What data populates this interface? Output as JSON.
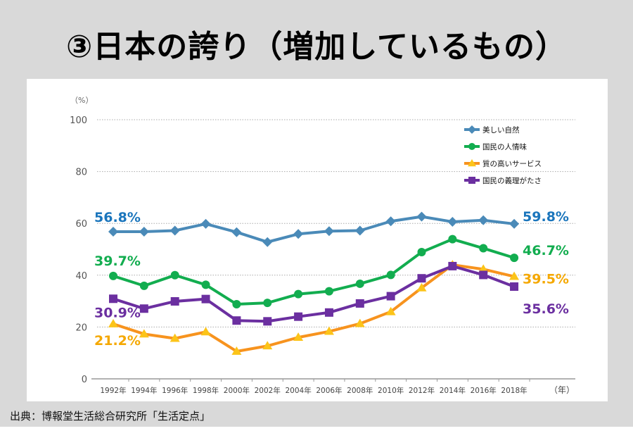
{
  "title": "③日本の誇り（増加しているもの）",
  "source": "出典：博報堂生活総合研究所「生活定点」",
  "chart_data": {
    "type": "line",
    "title": "③日本の誇り（増加しているもの）",
    "xlabel": "（年）",
    "ylabel": "（%）",
    "ylim": [
      0,
      100
    ],
    "yticks": [
      0,
      20,
      40,
      60,
      80,
      100
    ],
    "grid": true,
    "legend_position": "top-right",
    "categories": [
      "1992年",
      "1994年",
      "1996年",
      "1998年",
      "2000年",
      "2002年",
      "2004年",
      "2006年",
      "2008年",
      "2010年",
      "2012年",
      "2014年",
      "2016年",
      "2018年"
    ],
    "series": [
      {
        "name": "美しい自然",
        "color": "#4a8ab8",
        "marker": "diamond",
        "values": [
          56.8,
          56.8,
          57.2,
          59.8,
          56.6,
          52.8,
          55.9,
          57.0,
          57.2,
          60.8,
          62.6,
          60.6,
          61.2,
          59.8
        ],
        "start_label": "56.8%",
        "end_label": "59.8%",
        "label_color": "#1a75bc"
      },
      {
        "name": "国民の人情味",
        "color": "#12ad4f",
        "marker": "circle",
        "values": [
          39.7,
          35.9,
          40.0,
          36.3,
          28.8,
          29.3,
          32.7,
          33.8,
          36.7,
          40.1,
          48.9,
          53.9,
          50.4,
          46.7
        ],
        "start_label": "39.7%",
        "end_label": "46.7%",
        "label_color": "#12ad4f"
      },
      {
        "name": "質の高いサービス",
        "color": "#f7931e",
        "marker": "triangle",
        "marker_color": "#fcc419",
        "values": [
          21.2,
          17.3,
          15.6,
          18.1,
          10.6,
          12.7,
          16.0,
          18.3,
          21.3,
          25.9,
          35.1,
          44.0,
          42.3,
          39.5
        ],
        "start_label": "21.2%",
        "end_label": "39.5%",
        "label_color": "#f5a800"
      },
      {
        "name": "国民の義理がたさ",
        "color": "#6b2fa0",
        "marker": "square",
        "values": [
          30.9,
          27.1,
          29.9,
          30.8,
          22.5,
          22.2,
          24.0,
          25.6,
          29.1,
          31.9,
          38.8,
          43.5,
          40.1,
          35.6
        ],
        "start_label": "30.9%",
        "end_label": "35.6%",
        "label_color": "#6b2fa0"
      }
    ]
  }
}
